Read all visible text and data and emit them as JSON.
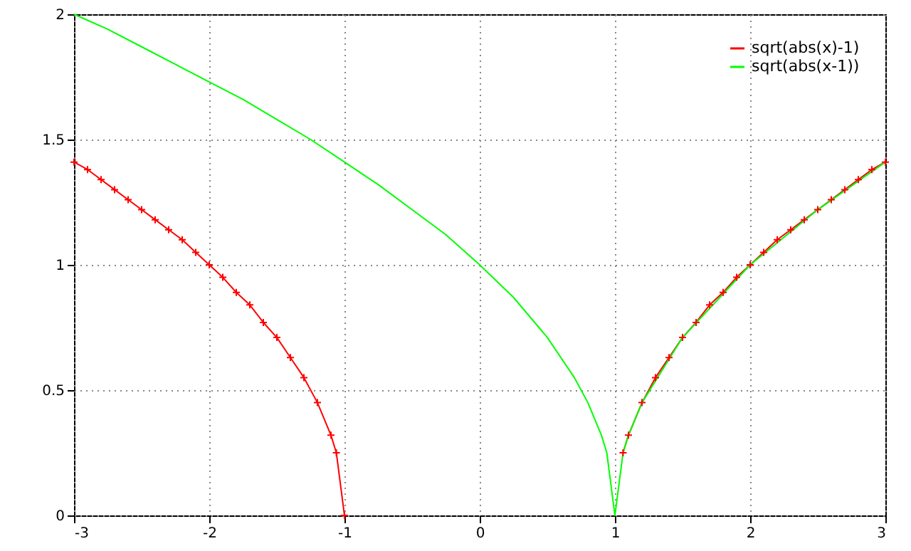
{
  "chart_data": {
    "type": "line",
    "xlim": [
      -3,
      3
    ],
    "ylim": [
      0,
      2
    ],
    "xticks": [
      -3,
      -2,
      -1,
      0,
      1,
      2,
      3
    ],
    "yticks": [
      0,
      0.5,
      1,
      1.5,
      2
    ],
    "grid": true,
    "legend": "top right",
    "series": [
      {
        "name": "sqrt(abs(x)-1)",
        "color": "#ff0000",
        "marker": "cross",
        "x": [
          -3,
          -2.9,
          -2.8,
          -2.7,
          -2.6,
          -2.5,
          -2.4,
          -2.3,
          -2.2,
          -2.1,
          -2,
          -1.9,
          -1.8,
          -1.7,
          -1.6,
          -1.5,
          -1.4,
          -1.3,
          -1.2,
          -1.1,
          -1.06,
          -1,
          0,
          1.06,
          1.1,
          1.2,
          1.3,
          1.4,
          1.5,
          1.6,
          1.7,
          1.8,
          1.9,
          2,
          2.1,
          2.2,
          2.3,
          2.4,
          2.5,
          2.6,
          2.7,
          2.8,
          2.9,
          3
        ],
        "values": [
          1.41,
          1.38,
          1.34,
          1.3,
          1.26,
          1.22,
          1.18,
          1.14,
          1.1,
          1.05,
          1,
          0.95,
          0.89,
          0.84,
          0.77,
          0.71,
          0.63,
          0.55,
          0.45,
          0.32,
          0.25,
          0,
          null,
          0.25,
          0.32,
          0.45,
          0.55,
          0.63,
          0.71,
          0.77,
          0.84,
          0.89,
          0.95,
          1,
          1.05,
          1.1,
          1.14,
          1.18,
          1.22,
          1.26,
          1.3,
          1.34,
          1.38,
          1.41
        ]
      },
      {
        "name": "sqrt(abs(x-1))",
        "color": "#00ff00",
        "marker": "none",
        "x": [
          -3,
          -2.75,
          -2.5,
          -2.25,
          -2,
          -1.75,
          -1.5,
          -1.25,
          -1,
          -0.75,
          -0.5,
          -0.25,
          0,
          0.25,
          0.5,
          0.7,
          0.8,
          0.9,
          0.94,
          1,
          1.06,
          1.1,
          1.2,
          1.5,
          2,
          2.5,
          3
        ],
        "values": [
          2,
          1.94,
          1.87,
          1.8,
          1.73,
          1.66,
          1.58,
          1.5,
          1.41,
          1.32,
          1.22,
          1.12,
          1,
          0.87,
          0.71,
          0.55,
          0.45,
          0.32,
          0.25,
          0,
          0.25,
          0.32,
          0.45,
          0.71,
          1,
          1.22,
          1.41
        ]
      }
    ]
  }
}
